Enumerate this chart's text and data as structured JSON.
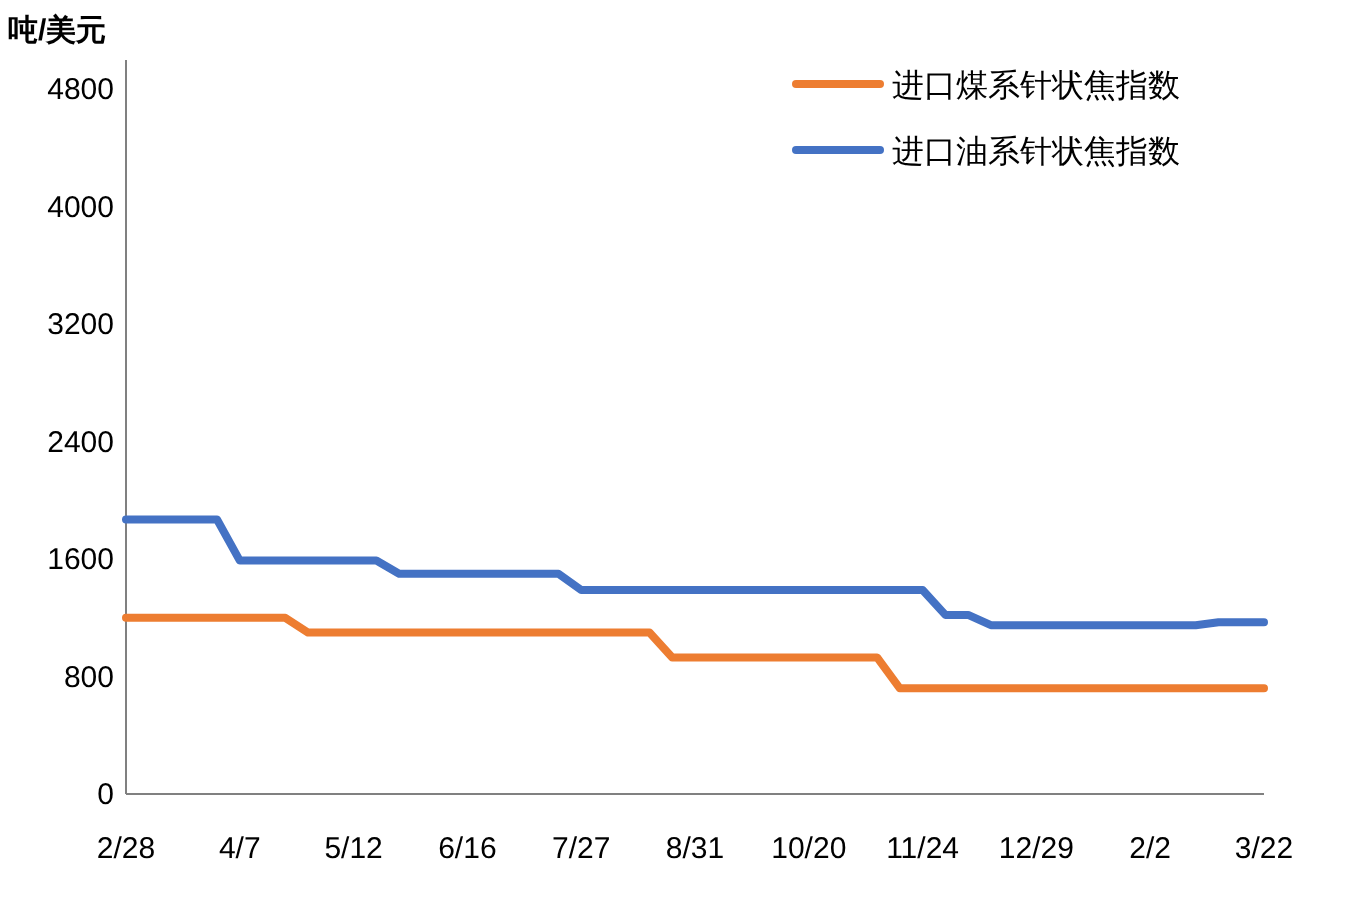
{
  "chart_data": {
    "type": "line",
    "ylabel": "吨/美元",
    "categories": [
      "2/28",
      null,
      null,
      null,
      null,
      "4/7",
      null,
      null,
      null,
      null,
      "5/12",
      null,
      null,
      null,
      null,
      "6/16",
      null,
      null,
      null,
      null,
      "7/27",
      null,
      null,
      null,
      null,
      "8/31",
      null,
      null,
      null,
      null,
      "10/20",
      null,
      null,
      null,
      null,
      "11/24",
      null,
      null,
      null,
      null,
      "12/29",
      null,
      null,
      null,
      null,
      "2/2",
      null,
      null,
      null,
      null,
      "3/22"
    ],
    "series": [
      {
        "name": "进口煤系针状焦指数",
        "color": "#ed7d31",
        "values": [
          1200,
          1200,
          1200,
          1200,
          1200,
          1200,
          1200,
          1200,
          1100,
          1100,
          1100,
          1100,
          1100,
          1100,
          1100,
          1100,
          1100,
          1100,
          1100,
          1100,
          1100,
          1100,
          1100,
          1100,
          930,
          930,
          930,
          930,
          930,
          930,
          930,
          930,
          930,
          930,
          720,
          720,
          720,
          720,
          720,
          720,
          720,
          720,
          720,
          720,
          720,
          720,
          720,
          720,
          720,
          720,
          720
        ]
      },
      {
        "name": "进口油系针状焦指数",
        "color": "#4472c4",
        "values": [
          1870,
          1870,
          1870,
          1870,
          1870,
          1590,
          1590,
          1590,
          1590,
          1590,
          1590,
          1590,
          1500,
          1500,
          1500,
          1500,
          1500,
          1500,
          1500,
          1500,
          1390,
          1390,
          1390,
          1390,
          1390,
          1390,
          1390,
          1390,
          1390,
          1390,
          1390,
          1390,
          1390,
          1390,
          1390,
          1390,
          1220,
          1220,
          1150,
          1150,
          1150,
          1150,
          1150,
          1150,
          1150,
          1150,
          1150,
          1150,
          1170,
          1170,
          1170
        ]
      }
    ],
    "ylim": [
      0,
      5000
    ],
    "yticks": [
      0,
      800,
      1600,
      2400,
      3200,
      4000,
      4800
    ],
    "grid": false,
    "legend": "top right",
    "marker": "none",
    "line_style": "solid"
  }
}
